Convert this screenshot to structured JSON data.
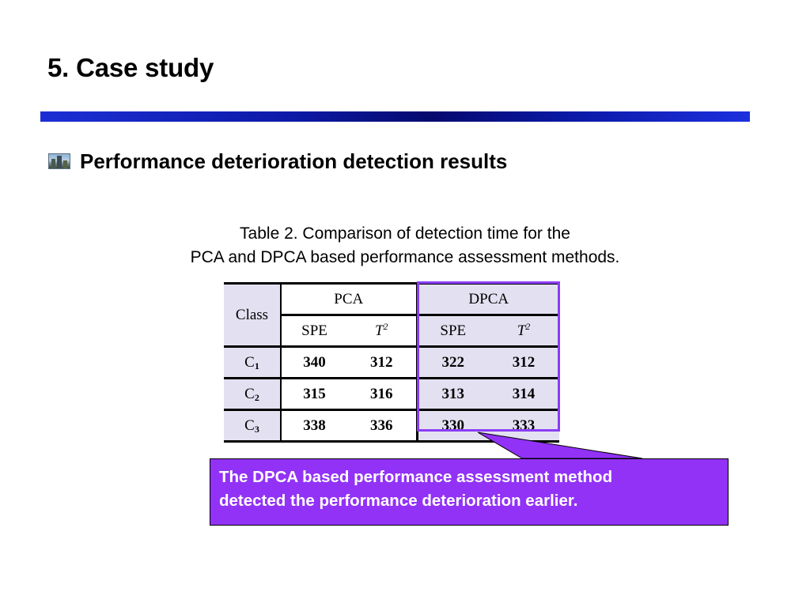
{
  "slide": {
    "title": "5. Case study",
    "bullet_icon": "building-photo-icon",
    "heading": "Performance deterioration detection results"
  },
  "caption": {
    "line1": "Table 2. Comparison of detection time for the",
    "line2": "PCA and DPCA based performance assessment methods."
  },
  "table": {
    "header": {
      "class_label": "Class",
      "group_pca": "PCA",
      "group_dpca": "DPCA",
      "spe": "SPE",
      "t_letter": "T",
      "t_exp": "2"
    },
    "rows": [
      {
        "class_letter": "C",
        "class_sub": "1",
        "pca_spe": "340",
        "pca_t2": "312",
        "dpca_spe": "322",
        "dpca_t2": "312"
      },
      {
        "class_letter": "C",
        "class_sub": "2",
        "pca_spe": "315",
        "pca_t2": "316",
        "dpca_spe": "313",
        "dpca_t2": "314"
      },
      {
        "class_letter": "C",
        "class_sub": "3",
        "pca_spe": "338",
        "pca_t2": "336",
        "dpca_spe": "330",
        "dpca_t2": "333"
      }
    ]
  },
  "callout": {
    "line1": "The DPCA based performance assessment method",
    "line2": "detected the performance deterioration earlier."
  },
  "colors": {
    "title_rule": "#0d1aa8",
    "highlight": "#8a3df5",
    "callout_fill": "#9232f7",
    "header_shade": "#e3e1f1"
  }
}
